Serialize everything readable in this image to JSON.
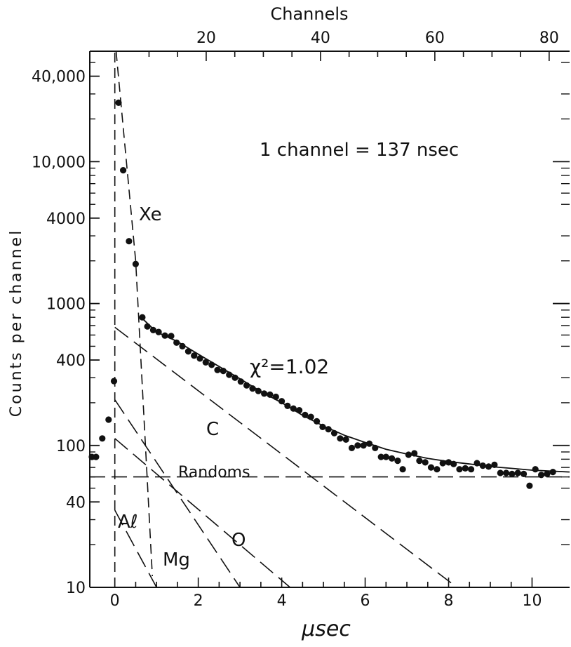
{
  "chart_data": {
    "type": "scatter",
    "x_unit": "μsec",
    "xlabel_top": "Channels",
    "ylabel": "Counts per channel",
    "x_scale": "linear",
    "y_scale": "log",
    "xlim": [
      -0.6,
      10.9
    ],
    "ylim": [
      10,
      60000
    ],
    "x_ticks": [
      0,
      2,
      4,
      6,
      8,
      10
    ],
    "x_tick_labels": [
      "0",
      "2",
      "4",
      "6",
      "8",
      "10"
    ],
    "top_ticks": [
      20,
      40,
      60,
      80
    ],
    "top_tick_labels": [
      "20",
      "40",
      "60",
      "80"
    ],
    "channel_zero_usec": -0.55,
    "usec_per_channel": 0.137,
    "y_ticks": [
      10,
      40,
      100,
      400,
      1000,
      4000,
      10000,
      40000
    ],
    "y_tick_labels": [
      "10",
      "40",
      "100",
      "400",
      "1000",
      "4000",
      "10,000",
      "40,000"
    ],
    "annotations": {
      "channel_note": "1 channel = 137 nsec",
      "chi_squared": "χ²=1.02",
      "randoms": "Randoms",
      "xe": "Xe",
      "c": "C",
      "o": "O",
      "mg": "Mg",
      "al": "Aℓ"
    },
    "series": [
      {
        "name": "data",
        "x": [
          -0.55,
          -0.45,
          -0.3,
          -0.15,
          -0.02,
          0.09,
          0.2,
          0.34,
          0.5,
          0.66,
          0.78,
          0.92,
          1.05,
          1.2,
          1.35,
          1.48,
          1.62,
          1.76,
          1.9,
          2.04,
          2.18,
          2.32,
          2.46,
          2.6,
          2.74,
          2.88,
          3.02,
          3.16,
          3.3,
          3.44,
          3.58,
          3.72,
          3.86,
          4.0,
          4.14,
          4.28,
          4.42,
          4.56,
          4.7,
          4.84,
          4.98,
          5.12,
          5.26,
          5.4,
          5.54,
          5.68,
          5.82,
          5.96,
          6.1,
          6.24,
          6.38,
          6.5,
          6.64,
          6.78,
          6.9,
          7.04,
          7.18,
          7.3,
          7.44,
          7.58,
          7.72,
          7.86,
          8.0,
          8.12,
          8.26,
          8.4,
          8.54,
          8.68,
          8.82,
          8.96,
          9.1,
          9.24,
          9.38,
          9.52,
          9.66,
          9.8,
          9.94,
          10.08,
          10.22,
          10.36,
          10.5
        ],
        "y": [
          83,
          83,
          112,
          152,
          284,
          26000,
          8700,
          2750,
          1900,
          800,
          690,
          650,
          630,
          595,
          590,
          530,
          500,
          460,
          430,
          410,
          385,
          370,
          340,
          335,
          315,
          300,
          282,
          265,
          252,
          242,
          232,
          228,
          220,
          205,
          190,
          182,
          177,
          164,
          159,
          148,
          135,
          130,
          122,
          112,
          110,
          96,
          100,
          100,
          103,
          96,
          83,
          83,
          81,
          78,
          68,
          86,
          88,
          78,
          76,
          70,
          68,
          75,
          76,
          74,
          68,
          69,
          68,
          75,
          72,
          71,
          73,
          64,
          64,
          63,
          64,
          63,
          52,
          68,
          62,
          63,
          65
        ]
      }
    ],
    "fit_lines": [
      {
        "name": "Xe",
        "x": [
          0.03,
          0.5,
          0.9
        ],
        "y": [
          60000,
          2000,
          12
        ]
      },
      {
        "name": "C",
        "x": [
          0.0,
          8.2
        ],
        "y": [
          680,
          10
        ]
      },
      {
        "name": "O",
        "x": [
          0.0,
          4.2
        ],
        "y": [
          112,
          10
        ]
      },
      {
        "name": "Mg",
        "x": [
          0.0,
          3.0
        ],
        "y": [
          210,
          10
        ]
      },
      {
        "name": "Al",
        "x": [
          0.0,
          1.0
        ],
        "y": [
          35,
          10
        ]
      },
      {
        "name": "Randoms",
        "x": [
          -0.6,
          10.9
        ],
        "y": [
          60,
          60
        ]
      },
      {
        "name": "total",
        "x": [
          0.65,
          1.0,
          1.5,
          2.0,
          2.5,
          3.0,
          3.5,
          4.0,
          4.5,
          5.0,
          5.5,
          6.0,
          6.5,
          7.0,
          7.5,
          8.0,
          8.5,
          9.0,
          9.5,
          10.0,
          10.9
        ],
        "y": [
          790,
          630,
          540,
          440,
          360,
          295,
          240,
          200,
          163,
          137,
          118,
          105,
          94,
          87,
          81,
          77,
          74,
          71,
          69,
          67,
          65
        ]
      },
      {
        "name": "prompt",
        "x": [
          0.0,
          0.0
        ],
        "y": [
          10,
          60000
        ]
      }
    ]
  }
}
